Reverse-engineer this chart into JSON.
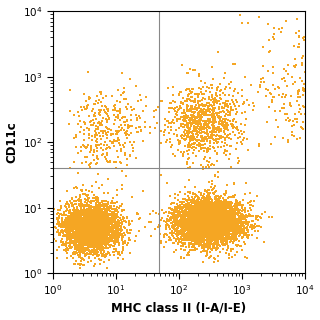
{
  "title": "",
  "xlabel": "MHC class II (I-A/I-E)",
  "ylabel": "CD11c",
  "xlim_log": [
    0,
    4
  ],
  "ylim_log": [
    0,
    4
  ],
  "dot_color": "#F5A623",
  "dot_size": 1.2,
  "dot_alpha": 1.0,
  "gate_x_log": 1.68,
  "gate_y_log": 1.6,
  "background_color": "#ffffff",
  "seed": 42
}
